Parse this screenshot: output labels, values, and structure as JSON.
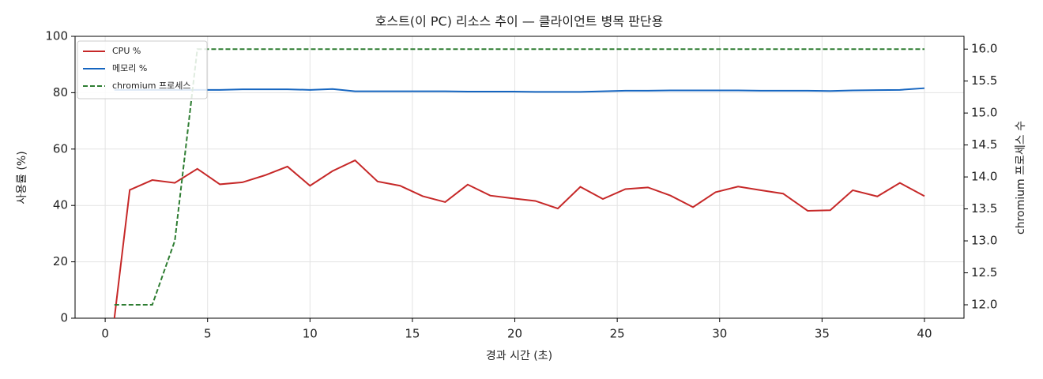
{
  "chart_data": {
    "type": "line",
    "title": "호스트(이 PC) 리소스 추이 — 클라이언트 병목 판단용",
    "x_label": "경과 시간 (초)",
    "y_label": "사용률 (%)",
    "y2_label": "chromium 프로세스 수",
    "x": [
      0.45,
      1.2,
      2.3,
      3.4,
      4.5,
      5.6,
      6.7,
      7.8,
      8.9,
      10.0,
      11.1,
      12.2,
      13.3,
      14.4,
      15.5,
      16.6,
      17.7,
      18.8,
      19.9,
      21.0,
      22.1,
      23.2,
      24.3,
      25.4,
      26.5,
      27.6,
      28.7,
      29.8,
      30.9,
      32.0,
      33.1,
      34.3,
      35.4,
      36.5,
      37.7,
      38.8,
      40.0
    ],
    "series": [
      {
        "name": "CPU %",
        "color": "#c62828",
        "linestyle": "solid",
        "values": [
          0,
          45.5,
          49,
          48,
          53,
          47.5,
          48.2,
          50.7,
          53.8,
          47,
          52.2,
          56,
          48.5,
          47,
          43.3,
          41.2,
          47.4,
          43.5,
          42.5,
          41.6,
          38.9,
          46.6,
          42.3,
          45.8,
          46.4,
          43.5,
          39.4,
          44.7,
          46.7,
          45.4,
          44.2,
          38.1,
          38.3,
          45.4,
          43.2,
          48,
          43.3
        ]
      },
      {
        "name": "메모리 %",
        "color": "#1565c0",
        "linestyle": "solid",
        "values": [
          81,
          81,
          81,
          81,
          81,
          81,
          81.2,
          81.2,
          81.2,
          81,
          81.3,
          80.5,
          80.5,
          80.5,
          80.5,
          80.5,
          80.4,
          80.4,
          80.4,
          80.3,
          80.3,
          80.3,
          80.5,
          80.7,
          80.7,
          80.8,
          80.8,
          80.8,
          80.8,
          80.7,
          80.7,
          80.7,
          80.6,
          80.8,
          80.9,
          81,
          81.6
        ]
      },
      {
        "name": "chromium 프로세스",
        "color": "#2e7d32",
        "linestyle": "dashed",
        "axis": "y2",
        "values": [
          12,
          12,
          12,
          13,
          16,
          16,
          16,
          16,
          16,
          16,
          16,
          16,
          16,
          16,
          16,
          16,
          16,
          16,
          16,
          16,
          16,
          16,
          16,
          16,
          16,
          16,
          16,
          16,
          16,
          16,
          16,
          16,
          16,
          16,
          16,
          16,
          16
        ]
      }
    ],
    "xlim": [
      -1.47,
      41.93
    ],
    "xticks": [
      0,
      5,
      10,
      15,
      20,
      25,
      30,
      35,
      40
    ],
    "ylim": [
      0,
      100
    ],
    "yticks": [
      0,
      20,
      40,
      60,
      80,
      100
    ],
    "y2lim": [
      11.79,
      16.2
    ],
    "y2ticks": [
      {
        "value": 12,
        "label": "12.0"
      },
      {
        "value": 12.5,
        "label": "12.5"
      },
      {
        "value": 13,
        "label": "13.0"
      },
      {
        "value": 13.5,
        "label": "13.5"
      },
      {
        "value": 14,
        "label": "14.0"
      },
      {
        "value": 14.5,
        "label": "14.5"
      },
      {
        "value": 15,
        "label": "15.0"
      },
      {
        "value": 15.5,
        "label": "15.5"
      },
      {
        "value": 16,
        "label": "16.0"
      }
    ],
    "grid": true,
    "legend": "upper-left"
  }
}
